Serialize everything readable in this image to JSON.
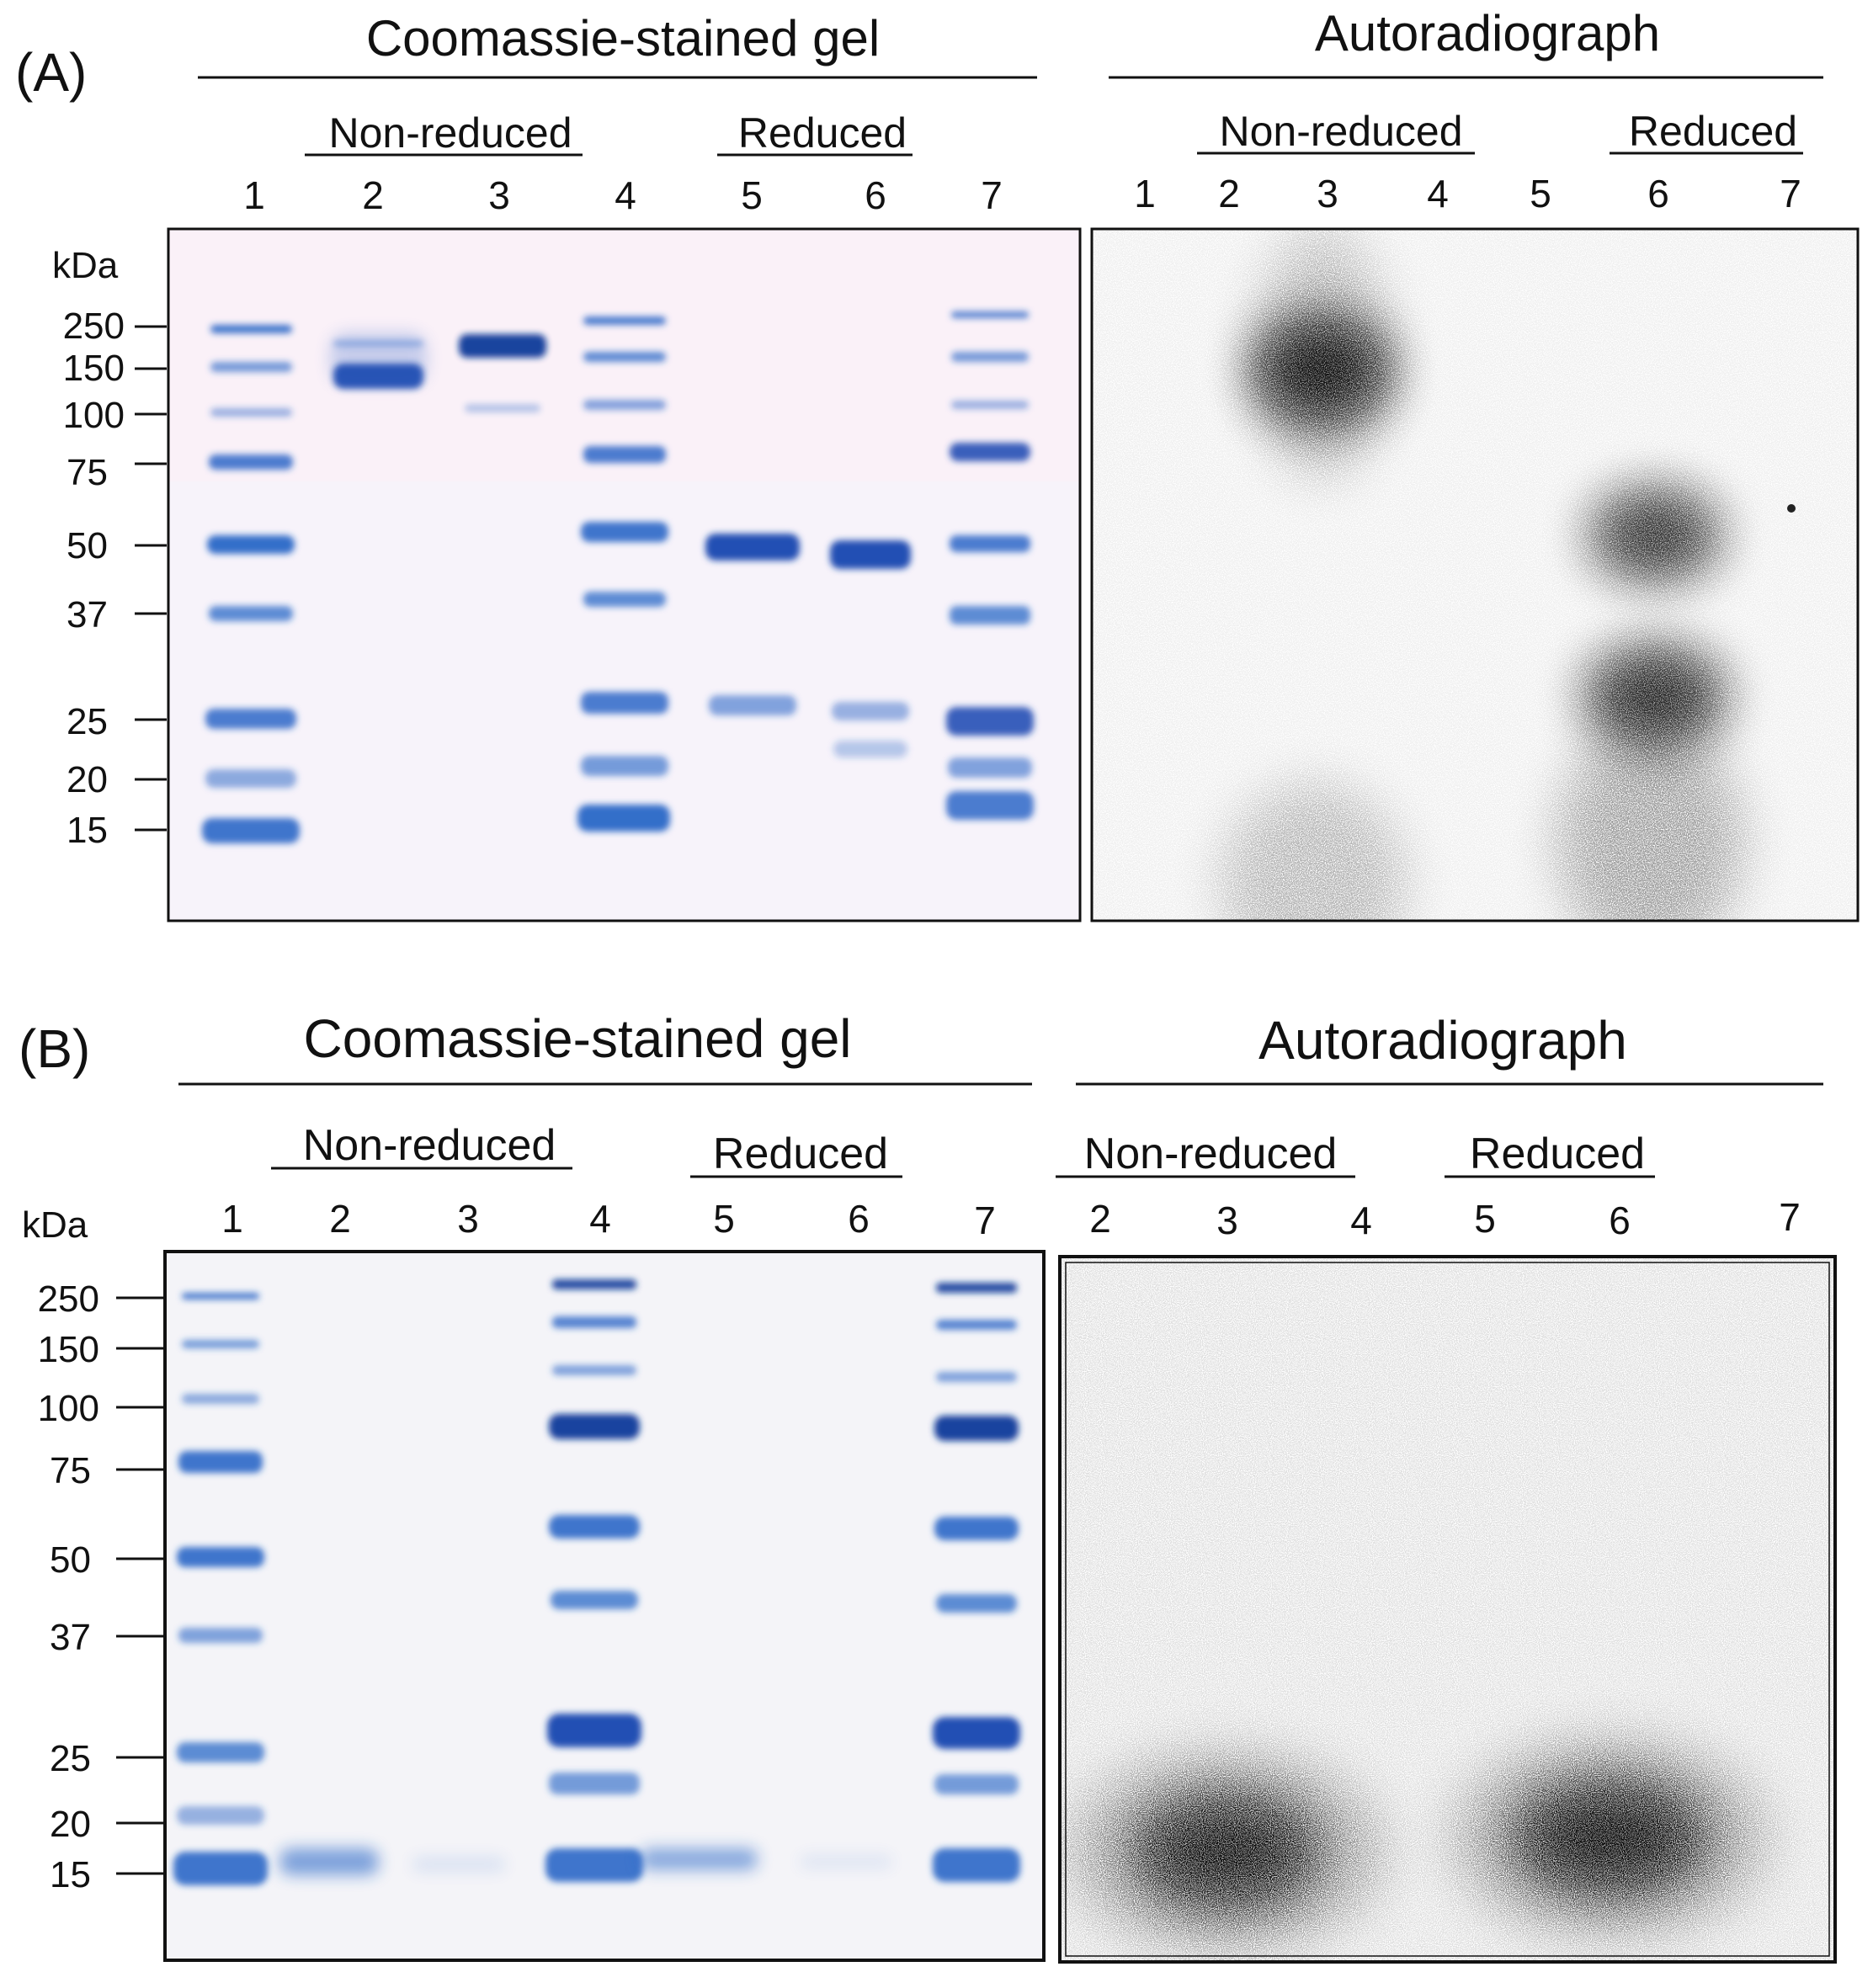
{
  "panels": [
    {
      "label": "(A)",
      "gel": {
        "title": "Coomassie-stained gel",
        "groups": [
          "Non-reduced",
          "Reduced"
        ],
        "lanes": [
          "1",
          "2",
          "3",
          "4",
          "5",
          "6",
          "7"
        ],
        "unit": "kDa",
        "markers": [
          "250",
          "150",
          "100",
          "75",
          "50",
          "37",
          "25",
          "20",
          "15"
        ]
      },
      "auto": {
        "title": "Autoradiograph",
        "groups": [
          "Non-reduced",
          "Reduced"
        ],
        "lanes": [
          "1",
          "2",
          "3",
          "4",
          "5",
          "6",
          "7"
        ]
      }
    },
    {
      "label": "(B)",
      "gel": {
        "title": "Coomassie-stained gel",
        "groups": [
          "Non-reduced",
          "Reduced"
        ],
        "lanes": [
          "1",
          "2",
          "3",
          "4",
          "5",
          "6",
          "7"
        ],
        "unit": "kDa",
        "markers": [
          "250",
          "150",
          "100",
          "75",
          "50",
          "37",
          "25",
          "20",
          "15"
        ]
      },
      "auto": {
        "title": "Autoradiograph",
        "groups": [
          "Non-reduced",
          "Reduced"
        ],
        "lanes": [
          "2",
          "3",
          "4",
          "5",
          "6",
          "7"
        ]
      }
    }
  ],
  "colors": {
    "stain": "#1f5fc4",
    "stain_dark": "#0d3a9a",
    "gel_bg": "#f6f6fb",
    "film_bg": "#ffffff",
    "signal": "#111111"
  }
}
